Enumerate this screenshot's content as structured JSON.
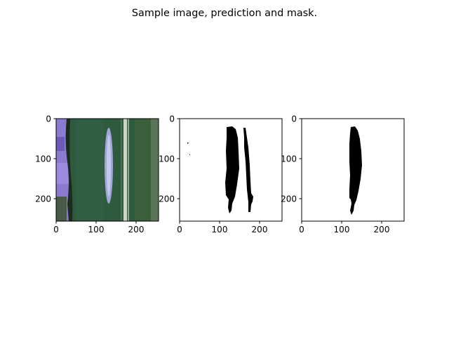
{
  "title": "Sample image, prediction and mask.",
  "chart_data": [
    {
      "type": "image",
      "panel": "sample image",
      "xlim": [
        0,
        256
      ],
      "ylim": [
        256,
        0
      ],
      "xticks": [
        0,
        100,
        200
      ],
      "yticks": [
        0,
        100,
        200
      ],
      "xtick_labels": [
        "0",
        "100",
        "200"
      ],
      "ytick_labels": [
        "0",
        "100",
        "200"
      ],
      "colors": {
        "leaf": "#2e5a3e",
        "glove": "#8a7ad0",
        "lesion": "#9fa6d8",
        "vein": "#c9d6c6",
        "dark_edge": "#1d2a1f"
      }
    },
    {
      "type": "image",
      "panel": "prediction",
      "xlim": [
        0,
        256
      ],
      "ylim": [
        256,
        0
      ],
      "xticks": [
        0,
        100,
        200
      ],
      "yticks": [
        0,
        100,
        200
      ],
      "xtick_labels": [
        "0",
        "100",
        "200"
      ],
      "ytick_labels": [
        "0",
        "100",
        "200"
      ],
      "colors": {
        "foreground": "#000000",
        "background": "#ffffff"
      }
    },
    {
      "type": "image",
      "panel": "mask",
      "xlim": [
        0,
        256
      ],
      "ylim": [
        256,
        0
      ],
      "xticks": [
        0,
        100,
        200
      ],
      "yticks": [
        0,
        100,
        200
      ],
      "xtick_labels": [
        "0",
        "100",
        "200"
      ],
      "ytick_labels": [
        "0",
        "100",
        "200"
      ],
      "colors": {
        "foreground": "#000000",
        "background": "#ffffff"
      }
    }
  ]
}
